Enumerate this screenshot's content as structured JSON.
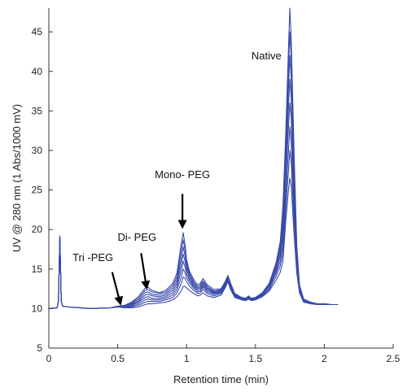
{
  "chart_data": {
    "type": "line",
    "xlabel": "Retention time (min)",
    "ylabel": "UV @ 280 nm (1 Abs/1000 mV)",
    "xlim": [
      0,
      2.5
    ],
    "ylim": [
      5,
      48
    ],
    "xticks": [
      0,
      0.5,
      1,
      1.5,
      2,
      2.5
    ],
    "xtick_labels": [
      "0",
      "0.5",
      "1",
      "1.5",
      "2",
      "2.5"
    ],
    "yticks": [
      5,
      10,
      15,
      20,
      25,
      30,
      35,
      40,
      45
    ],
    "ytick_labels": [
      "5",
      "10",
      "15",
      "20",
      "25",
      "30",
      "35",
      "40",
      "45"
    ],
    "grid": false,
    "line_color": "#3a4aa8",
    "x": [
      0.0,
      0.06,
      0.07,
      0.08,
      0.085,
      0.09,
      0.1,
      0.15,
      0.3,
      0.45,
      0.5,
      0.55,
      0.6,
      0.65,
      0.7,
      0.72,
      0.75,
      0.8,
      0.85,
      0.9,
      0.93,
      0.96,
      0.975,
      0.99,
      1.0,
      1.02,
      1.05,
      1.08,
      1.1,
      1.12,
      1.15,
      1.2,
      1.25,
      1.28,
      1.3,
      1.32,
      1.35,
      1.4,
      1.43,
      1.45,
      1.47,
      1.5,
      1.55,
      1.6,
      1.65,
      1.68,
      1.7,
      1.72,
      1.74,
      1.75,
      1.76,
      1.78,
      1.8,
      1.82,
      1.85,
      1.9,
      1.95,
      2.0,
      2.05,
      2.1
    ],
    "series": [
      {
        "values": [
          10.0,
          10.1,
          11.0,
          19.2,
          15.0,
          11.0,
          10.3,
          10.2,
          10.0,
          10.1,
          10.3,
          10.4,
          10.8,
          11.5,
          12.6,
          12.7,
          12.3,
          12.0,
          12.3,
          13.2,
          14.5,
          18.0,
          19.6,
          18.0,
          16.2,
          14.8,
          13.7,
          13.0,
          13.2,
          13.8,
          13.0,
          12.4,
          12.5,
          13.4,
          14.2,
          13.2,
          11.9,
          11.4,
          11.3,
          11.6,
          11.3,
          11.4,
          12.0,
          13.2,
          15.8,
          18.5,
          23.0,
          32.0,
          43.0,
          48.0,
          44.0,
          30.0,
          18.0,
          13.0,
          11.2,
          10.8,
          10.6,
          10.6,
          10.5,
          10.5
        ]
      },
      {
        "values": [
          10.0,
          10.1,
          11.0,
          19.1,
          15.0,
          11.0,
          10.3,
          10.2,
          10.0,
          10.1,
          10.3,
          10.4,
          10.7,
          11.3,
          12.3,
          12.4,
          12.1,
          11.9,
          12.1,
          12.9,
          14.0,
          17.2,
          18.7,
          17.3,
          15.8,
          14.5,
          13.4,
          12.8,
          13.0,
          13.5,
          12.8,
          12.2,
          12.4,
          13.3,
          14.1,
          13.1,
          11.8,
          11.4,
          11.3,
          11.5,
          11.3,
          11.4,
          12.0,
          13.1,
          15.6,
          18.0,
          22.0,
          30.5,
          40.5,
          45.0,
          41.5,
          28.5,
          17.5,
          12.9,
          11.2,
          10.8,
          10.6,
          10.6,
          10.5,
          10.5
        ]
      },
      {
        "values": [
          10.0,
          10.1,
          11.0,
          19.0,
          15.0,
          11.0,
          10.3,
          10.2,
          10.0,
          10.1,
          10.3,
          10.4,
          10.6,
          11.1,
          12.0,
          12.1,
          11.8,
          11.7,
          11.9,
          12.6,
          13.6,
          16.3,
          17.8,
          16.6,
          15.3,
          14.2,
          13.2,
          12.6,
          12.8,
          13.3,
          12.6,
          12.1,
          12.3,
          13.2,
          14.0,
          13.0,
          11.8,
          11.4,
          11.3,
          11.5,
          11.3,
          11.4,
          11.9,
          13.0,
          15.4,
          17.6,
          21.0,
          29.0,
          38.0,
          42.0,
          39.0,
          27.0,
          17.0,
          12.8,
          11.1,
          10.8,
          10.6,
          10.6,
          10.5,
          10.5
        ]
      },
      {
        "values": [
          10.0,
          10.1,
          11.0,
          19.0,
          15.0,
          11.0,
          10.3,
          10.2,
          10.0,
          10.1,
          10.3,
          10.3,
          10.5,
          10.9,
          11.7,
          11.8,
          11.6,
          11.5,
          11.7,
          12.3,
          13.2,
          15.5,
          16.9,
          15.9,
          14.9,
          13.9,
          13.0,
          12.5,
          12.6,
          13.1,
          12.5,
          12.0,
          12.2,
          13.1,
          13.9,
          12.9,
          11.7,
          11.3,
          11.2,
          11.5,
          11.2,
          11.3,
          11.9,
          12.9,
          15.1,
          17.1,
          20.0,
          27.5,
          35.5,
          39.0,
          36.5,
          25.5,
          16.5,
          12.7,
          11.1,
          10.8,
          10.6,
          10.6,
          10.5,
          10.5
        ]
      },
      {
        "values": [
          10.0,
          10.1,
          11.0,
          18.9,
          15.0,
          11.0,
          10.3,
          10.2,
          10.0,
          10.1,
          10.2,
          10.3,
          10.4,
          10.8,
          11.4,
          11.5,
          11.3,
          11.3,
          11.5,
          12.0,
          12.8,
          14.7,
          16.0,
          15.2,
          14.4,
          13.6,
          12.8,
          12.3,
          12.4,
          12.9,
          12.3,
          11.9,
          12.1,
          13.0,
          13.8,
          12.8,
          11.7,
          11.3,
          11.2,
          11.4,
          11.2,
          11.3,
          11.8,
          12.8,
          14.8,
          16.6,
          19.0,
          26.0,
          33.0,
          36.0,
          34.0,
          24.0,
          16.0,
          12.6,
          11.0,
          10.7,
          10.6,
          10.6,
          10.5,
          10.5
        ]
      },
      {
        "values": [
          10.0,
          10.1,
          11.0,
          18.8,
          15.0,
          11.0,
          10.3,
          10.2,
          10.0,
          10.1,
          10.2,
          10.2,
          10.3,
          10.6,
          11.1,
          11.2,
          11.1,
          11.1,
          11.3,
          11.7,
          12.4,
          13.9,
          15.0,
          14.5,
          13.9,
          13.3,
          12.6,
          12.1,
          12.2,
          12.7,
          12.1,
          11.8,
          12.0,
          12.9,
          13.7,
          12.7,
          11.6,
          11.2,
          11.1,
          11.4,
          11.1,
          11.2,
          11.7,
          12.6,
          14.5,
          16.0,
          18.0,
          24.0,
          30.0,
          33.0,
          31.0,
          22.5,
          15.5,
          12.4,
          10.9,
          10.7,
          10.6,
          10.5,
          10.5,
          10.5
        ]
      },
      {
        "values": [
          10.0,
          10.1,
          11.0,
          18.7,
          15.0,
          11.0,
          10.3,
          10.2,
          10.0,
          10.1,
          10.2,
          10.2,
          10.2,
          10.4,
          10.8,
          10.9,
          10.9,
          10.9,
          11.1,
          11.4,
          12.0,
          13.1,
          14.0,
          13.8,
          13.4,
          12.9,
          12.3,
          11.9,
          12.0,
          12.4,
          11.9,
          11.6,
          11.9,
          12.8,
          13.6,
          12.6,
          11.5,
          11.2,
          11.1,
          11.3,
          11.1,
          11.2,
          11.6,
          12.4,
          14.1,
          15.4,
          17.0,
          22.5,
          27.5,
          30.0,
          28.5,
          21.0,
          15.0,
          12.2,
          10.9,
          10.7,
          10.6,
          10.5,
          10.5,
          10.5
        ]
      },
      {
        "values": [
          10.0,
          10.1,
          11.0,
          18.6,
          15.0,
          11.0,
          10.3,
          10.2,
          10.0,
          10.1,
          10.2,
          10.1,
          10.1,
          10.2,
          10.5,
          10.6,
          10.6,
          10.7,
          10.8,
          11.1,
          11.5,
          12.2,
          12.8,
          12.8,
          12.6,
          12.3,
          11.9,
          11.6,
          11.7,
          12.0,
          11.6,
          11.4,
          11.7,
          12.6,
          13.4,
          12.4,
          11.4,
          11.1,
          11.0,
          11.2,
          11.0,
          11.1,
          11.5,
          12.2,
          13.6,
          14.6,
          16.0,
          21.0,
          25.0,
          26.5,
          25.5,
          19.5,
          14.5,
          12.0,
          10.8,
          10.6,
          10.5,
          10.5,
          10.5,
          10.5
        ]
      }
    ],
    "annotations": [
      {
        "text": "Native",
        "x": 1.58,
        "y": 41.5
      },
      {
        "text": "Mono- PEG",
        "x": 0.97,
        "y": 26.5,
        "arrow_from": [
          0.97,
          24.5
        ],
        "arrow_to": [
          0.97,
          20.3
        ]
      },
      {
        "text": "Di- PEG",
        "x": 0.64,
        "y": 18.6,
        "arrow_from": [
          0.67,
          17.0
        ],
        "arrow_to": [
          0.71,
          12.6
        ]
      },
      {
        "text": "Tri -PEG",
        "x": 0.32,
        "y": 16.0,
        "arrow_from": [
          0.46,
          14.6
        ],
        "arrow_to": [
          0.52,
          10.6
        ]
      }
    ]
  }
}
